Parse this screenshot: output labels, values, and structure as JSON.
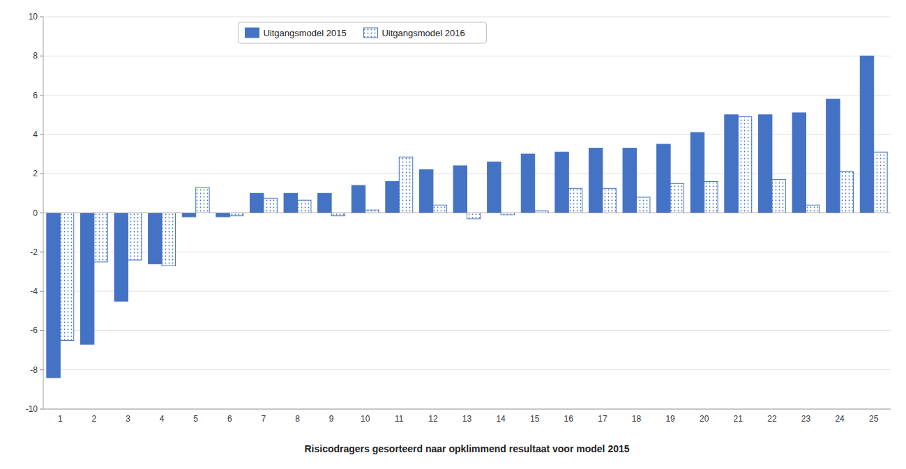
{
  "chart_data": {
    "type": "bar",
    "x_label": "Risicodragers gesorteerd naar opklimmend resultaat voor model 2015",
    "categories": [
      "1",
      "2",
      "3",
      "4",
      "5",
      "6",
      "7",
      "8",
      "9",
      "10",
      "11",
      "12",
      "13",
      "14",
      "15",
      "16",
      "17",
      "18",
      "19",
      "20",
      "21",
      "22",
      "23",
      "24",
      "25"
    ],
    "series": [
      {
        "name": "Uitgangsmodel 2015",
        "color": "#4472C4",
        "values": [
          -8.4,
          -6.7,
          -4.5,
          -2.6,
          -0.2,
          -0.2,
          1.0,
          1.0,
          1.0,
          1.4,
          1.6,
          2.2,
          2.4,
          2.6,
          3.0,
          3.1,
          3.3,
          3.3,
          3.5,
          4.1,
          5.0,
          5.0,
          5.1,
          5.8,
          8.0
        ]
      },
      {
        "name": "Uitgangsmodel 2016",
        "color": "#4472C4",
        "values": [
          -6.5,
          -2.5,
          -2.4,
          -2.7,
          1.3,
          -0.15,
          0.75,
          0.65,
          -0.15,
          0.15,
          2.85,
          0.4,
          -0.3,
          -0.1,
          0.1,
          1.25,
          1.25,
          0.8,
          1.5,
          1.6,
          4.9,
          1.7,
          0.4,
          2.1,
          3.1
        ]
      }
    ],
    "ylim": [
      -10,
      10
    ],
    "yticks": [
      -10,
      -8,
      -6,
      -4,
      -2,
      0,
      2,
      4,
      6,
      8,
      10
    ],
    "grid": true,
    "legend": "upper left"
  }
}
